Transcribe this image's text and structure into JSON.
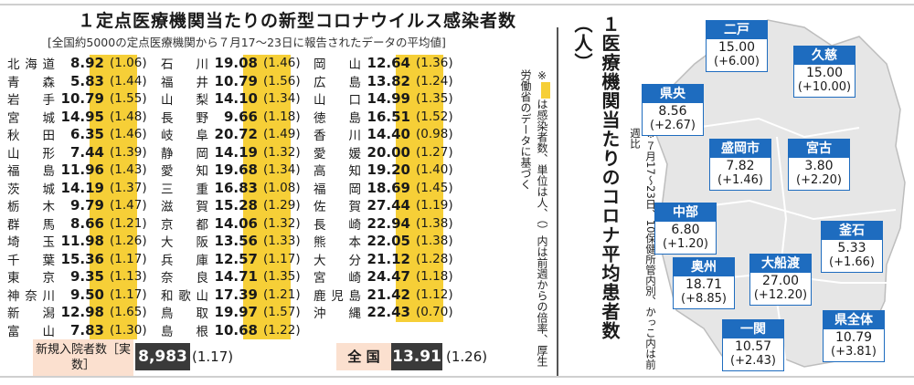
{
  "left": {
    "title": "１定点医療機関当たりの新型コロナウイルス感染者数",
    "subtitle": "[全国約5000の定点医療機関から７月17～23日に報告されたデータの平均値]",
    "columns": [
      [
        {
          "pref": "北海道",
          "value": "8.92",
          "prev": "(1.06)"
        },
        {
          "pref": "青森",
          "value": "5.83",
          "prev": "(1.44)"
        },
        {
          "pref": "岩手",
          "value": "10.79",
          "prev": "(1.55)"
        },
        {
          "pref": "宮城",
          "value": "14.95",
          "prev": "(1.48)"
        },
        {
          "pref": "秋田",
          "value": "6.35",
          "prev": "(1.46)"
        },
        {
          "pref": "山形",
          "value": "7.44",
          "prev": "(1.39)"
        },
        {
          "pref": "福島",
          "value": "11.96",
          "prev": "(1.43)"
        },
        {
          "pref": "茨城",
          "value": "14.19",
          "prev": "(1.37)"
        },
        {
          "pref": "栃木",
          "value": "9.79",
          "prev": "(1.47)"
        },
        {
          "pref": "群馬",
          "value": "8.66",
          "prev": "(1.21)"
        },
        {
          "pref": "埼玉",
          "value": "11.98",
          "prev": "(1.26)"
        },
        {
          "pref": "千葉",
          "value": "15.36",
          "prev": "(1.17)"
        },
        {
          "pref": "東京",
          "value": "9.35",
          "prev": "(1.13)"
        },
        {
          "pref": "神奈川",
          "value": "9.50",
          "prev": "(1.17)"
        },
        {
          "pref": "新潟",
          "value": "12.98",
          "prev": "(1.65)"
        },
        {
          "pref": "富山",
          "value": "7.83",
          "prev": "(1.30)"
        }
      ],
      [
        {
          "pref": "石川",
          "value": "19.08",
          "prev": "(1.46)"
        },
        {
          "pref": "福井",
          "value": "10.79",
          "prev": "(1.56)"
        },
        {
          "pref": "山梨",
          "value": "14.10",
          "prev": "(1.34)"
        },
        {
          "pref": "長野",
          "value": "9.66",
          "prev": "(1.18)"
        },
        {
          "pref": "岐阜",
          "value": "20.72",
          "prev": "(1.49)"
        },
        {
          "pref": "静岡",
          "value": "14.19",
          "prev": "(1.32)"
        },
        {
          "pref": "愛知",
          "value": "19.68",
          "prev": "(1.34)"
        },
        {
          "pref": "三重",
          "value": "16.83",
          "prev": "(1.08)"
        },
        {
          "pref": "滋賀",
          "value": "15.28",
          "prev": "(1.29)"
        },
        {
          "pref": "京都",
          "value": "14.06",
          "prev": "(1.32)"
        },
        {
          "pref": "大阪",
          "value": "13.56",
          "prev": "(1.33)"
        },
        {
          "pref": "兵庫",
          "value": "12.57",
          "prev": "(1.17)"
        },
        {
          "pref": "奈良",
          "value": "14.71",
          "prev": "(1.35)"
        },
        {
          "pref": "和歌山",
          "value": "17.39",
          "prev": "(1.21)"
        },
        {
          "pref": "鳥取",
          "value": "19.97",
          "prev": "(1.57)"
        },
        {
          "pref": "島根",
          "value": "10.68",
          "prev": "(1.22)"
        }
      ],
      [
        {
          "pref": "岡山",
          "value": "12.64",
          "prev": "(1.36)"
        },
        {
          "pref": "広島",
          "value": "13.82",
          "prev": "(1.24)"
        },
        {
          "pref": "山口",
          "value": "14.99",
          "prev": "(1.35)"
        },
        {
          "pref": "徳島",
          "value": "16.51",
          "prev": "(1.52)"
        },
        {
          "pref": "香川",
          "value": "14.40",
          "prev": "(0.98)"
        },
        {
          "pref": "愛媛",
          "value": "20.00",
          "prev": "(1.27)"
        },
        {
          "pref": "高知",
          "value": "19.20",
          "prev": "(1.40)"
        },
        {
          "pref": "福岡",
          "value": "18.69",
          "prev": "(1.45)"
        },
        {
          "pref": "佐賀",
          "value": "27.44",
          "prev": "(1.19)"
        },
        {
          "pref": "長崎",
          "value": "22.94",
          "prev": "(1.38)"
        },
        {
          "pref": "熊本",
          "value": "22.05",
          "prev": "(1.38)"
        },
        {
          "pref": "大分",
          "value": "21.12",
          "prev": "(1.28)"
        },
        {
          "pref": "宮崎",
          "value": "24.47",
          "prev": "(1.18)"
        },
        {
          "pref": "鹿児島",
          "value": "21.42",
          "prev": "(1.12)"
        },
        {
          "pref": "沖縄",
          "value": "22.43",
          "prev": "(0.70)"
        }
      ]
    ],
    "note_prefix": "※",
    "note_text": "は感染者数、単位は人、（）内は前週からの倍率、厚生労働省のデータに基づく",
    "new_hosp_label": "新規入院者数［実数］",
    "new_hosp_value": "8,983",
    "new_hosp_prev": "(1.17)",
    "national_label": "全 国",
    "national_value": "13.91",
    "national_prev": "(1.26)",
    "highlight_color": "#f6cf37"
  },
  "right": {
    "title": "１医療機関当たりのコロナ平均患者数（人）",
    "note": "※７月17～23日、10保健所管内別、かっこ内は前週比",
    "accent_color": "#1e6cbf",
    "regions": [
      {
        "name": "二戸",
        "value": "15.00",
        "diff": "(+6.00)"
      },
      {
        "name": "久慈",
        "value": "15.00",
        "diff": "(+10.00)"
      },
      {
        "name": "県央",
        "value": "8.56",
        "diff": "(+2.67)"
      },
      {
        "name": "盛岡市",
        "value": "7.82",
        "diff": "(+1.46)"
      },
      {
        "name": "宮古",
        "value": "3.80",
        "diff": "(+2.20)"
      },
      {
        "name": "中部",
        "value": "6.80",
        "diff": "(+1.20)"
      },
      {
        "name": "釜石",
        "value": "5.33",
        "diff": "(+1.66)"
      },
      {
        "name": "奥州",
        "value": "18.71",
        "diff": "(+8.85)"
      },
      {
        "name": "大船渡",
        "value": "27.00",
        "diff": "(+12.20)"
      },
      {
        "name": "一関",
        "value": "10.57",
        "diff": "(+2.43)"
      },
      {
        "name": "県全体",
        "value": "10.79",
        "diff": "(+3.81)"
      }
    ]
  }
}
